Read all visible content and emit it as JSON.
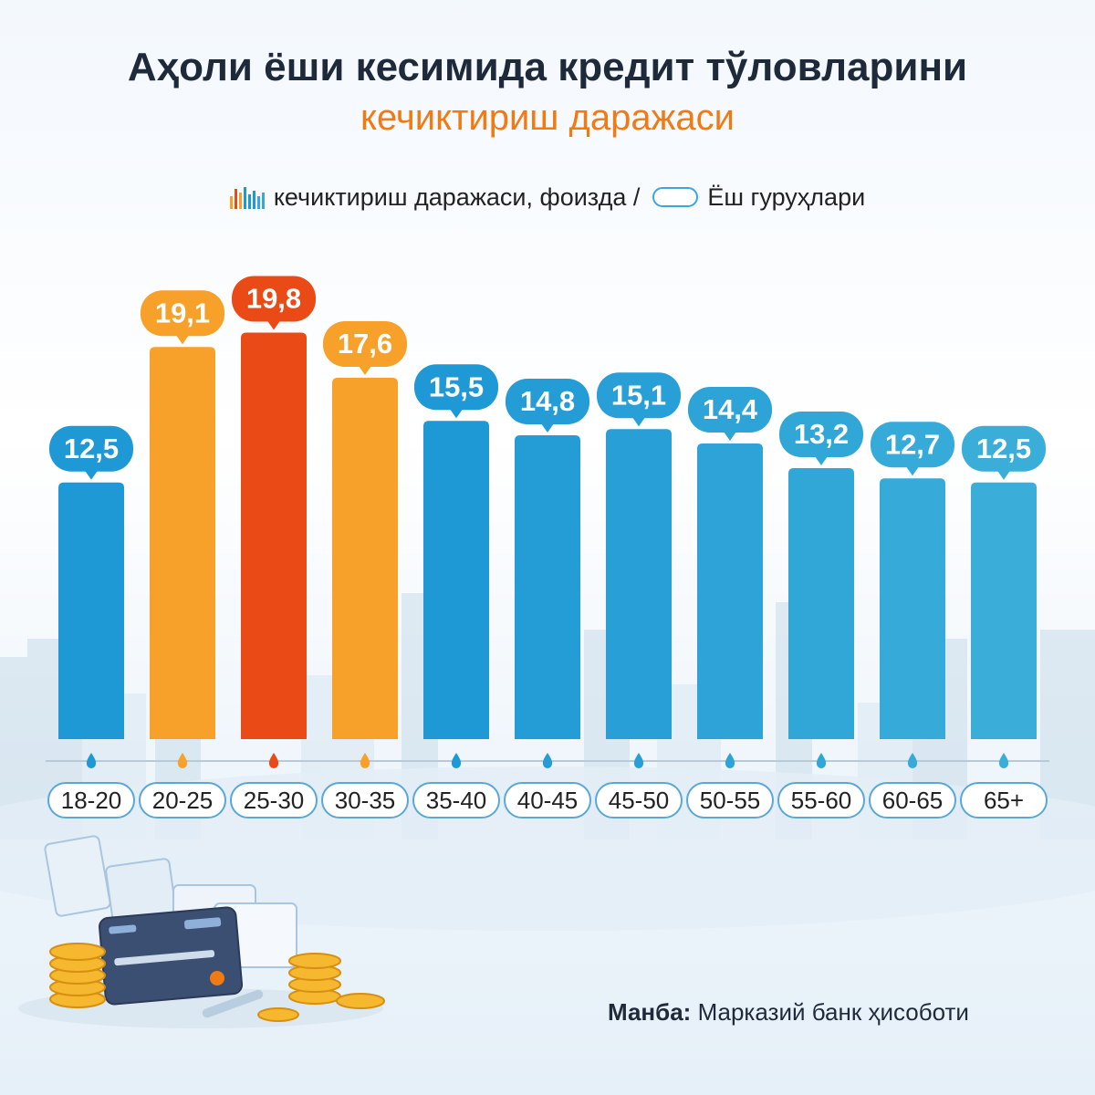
{
  "title": "Аҳоли ёши кесимида кредит тўловларини",
  "subtitle": "кечиктириш даражаси",
  "legend": {
    "series_label": "кечиктириш даражаси, фоизда /",
    "categories_label": "Ёш гуруҳлари"
  },
  "source": {
    "label": "Манба:",
    "text": "Марказий банк ҳисоботи"
  },
  "colors": {
    "blue": "#1f98d6",
    "orange": "#f7a02a",
    "red": "#ea4a16",
    "title": "#1e2a3a",
    "subtitle": "#f07a14"
  },
  "chart_data": {
    "type": "bar",
    "categories": [
      "18-20",
      "20-25",
      "25-30",
      "30-35",
      "35-40",
      "40-45",
      "45-50",
      "50-55",
      "55-60",
      "60-65",
      "65+"
    ],
    "values": [
      12.5,
      19.1,
      19.8,
      17.6,
      15.5,
      14.8,
      15.1,
      14.4,
      13.2,
      12.7,
      12.5
    ],
    "labels": [
      "12,5",
      "19,1",
      "19,8",
      "17,6",
      "15,5",
      "14,8",
      "15,1",
      "14,4",
      "13,2",
      "12,7",
      "12,5"
    ],
    "bar_colors": [
      "blue",
      "orange",
      "red",
      "orange",
      "blue",
      "blue",
      "blue",
      "blue",
      "blue",
      "blue",
      "blue"
    ],
    "ylim": [
      0,
      20
    ],
    "grid": false
  }
}
